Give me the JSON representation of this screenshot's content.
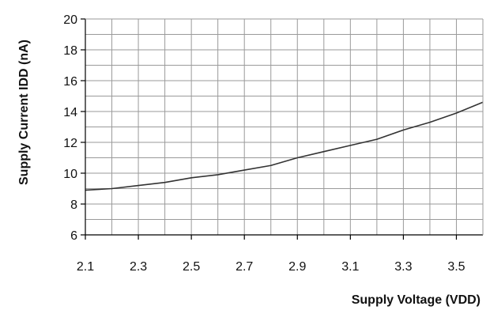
{
  "chart_data": {
    "type": "line",
    "title": "",
    "xlabel": "Supply Voltage (VDD)",
    "ylabel": "Supply Current IDD (nA)",
    "xlim": [
      2.1,
      3.6
    ],
    "ylim": [
      6,
      20
    ],
    "x_ticks": [
      2.1,
      2.3,
      2.5,
      2.7,
      2.9,
      3.1,
      3.3,
      3.5
    ],
    "x_tick_labels": [
      "2.1",
      "2.3",
      "2.5",
      "2.7",
      "2.9",
      "3.1",
      "3.3",
      "3.5"
    ],
    "y_ticks": [
      6,
      8,
      10,
      12,
      14,
      16,
      18,
      20
    ],
    "y_tick_labels": [
      "6",
      "8",
      "10",
      "12",
      "14",
      "16",
      "18",
      "20"
    ],
    "grid": true,
    "grid_x_step": 0.1,
    "grid_y_step": 1,
    "line_color": "#333333",
    "grid_color": "#9a9a9a",
    "series": [
      {
        "x": [
          2.1,
          2.2,
          2.3,
          2.4,
          2.5,
          2.6,
          2.7,
          2.8,
          2.9,
          3.0,
          3.1,
          3.2,
          3.3,
          3.4,
          3.5,
          3.6
        ],
        "y": [
          8.9,
          9.0,
          9.2,
          9.4,
          9.7,
          9.9,
          10.2,
          10.5,
          11.0,
          11.4,
          11.8,
          12.2,
          12.8,
          13.3,
          13.9,
          14.6
        ]
      }
    ]
  }
}
